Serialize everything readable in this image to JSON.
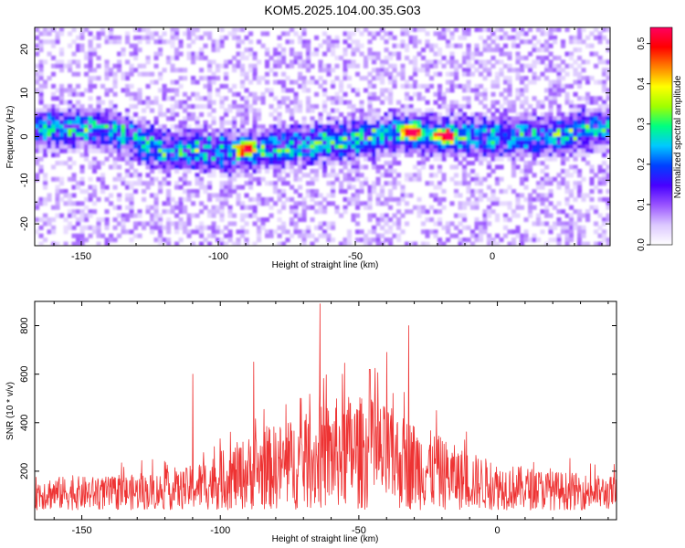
{
  "title": "KOM5.2025.104.00.35.G03",
  "chart_data": [
    {
      "type": "heatmap",
      "xlabel": "Height of straight line (km)",
      "ylabel": "Frequency (Hz)",
      "xlim": [
        -167,
        43
      ],
      "ylim": [
        -25,
        25
      ],
      "x_ticks": [
        -150,
        -100,
        -50,
        0
      ],
      "y_ticks": [
        -20,
        -10,
        0,
        10,
        20
      ],
      "colorbar": {
        "label": "Normalized spectral amplitude",
        "range": [
          0,
          0.54
        ],
        "ticks": [
          0.0,
          0.1,
          0.2,
          0.3,
          0.4,
          0.5
        ],
        "colors": [
          "#ffffff",
          "#dcc8ff",
          "#9a55ff",
          "#4800ff",
          "#0040ff",
          "#00c8ff",
          "#00ff80",
          "#a0ff00",
          "#ffff00",
          "#ff8000",
          "#ff0000",
          "#ff0060"
        ]
      },
      "band_center": [
        {
          "x": -167,
          "y": 2
        },
        {
          "x": -140,
          "y": 1.5
        },
        {
          "x": -120,
          "y": -3
        },
        {
          "x": -90,
          "y": -3.5
        },
        {
          "x": -60,
          "y": -1.5
        },
        {
          "x": -30,
          "y": 1
        },
        {
          "x": -15,
          "y": 0
        },
        {
          "x": 0,
          "y": 0
        },
        {
          "x": 20,
          "y": 0
        },
        {
          "x": 43,
          "y": 2
        }
      ],
      "peaks": [
        {
          "x": -90,
          "y": -3,
          "amp": 0.5
        },
        {
          "x": -29,
          "y": 1,
          "amp": 0.54
        },
        {
          "x": -17,
          "y": 0,
          "amp": 0.5
        }
      ],
      "grid": false
    },
    {
      "type": "line",
      "xlabel": "Height of straight line (km)",
      "ylabel": "SNR (10 * v/v)",
      "xlim": [
        -167,
        43
      ],
      "ylim": [
        0,
        900
      ],
      "x_ticks": [
        -150,
        -100,
        -50,
        0
      ],
      "y_ticks": [
        200,
        400,
        600,
        800
      ],
      "color": "#ee3333",
      "envelope": [
        {
          "x": -167,
          "y": 160
        },
        {
          "x": -140,
          "y": 160
        },
        {
          "x": -115,
          "y": 180
        },
        {
          "x": -100,
          "y": 250
        },
        {
          "x": -85,
          "y": 330
        },
        {
          "x": -70,
          "y": 380
        },
        {
          "x": -55,
          "y": 460
        },
        {
          "x": -45,
          "y": 440
        },
        {
          "x": -30,
          "y": 360
        },
        {
          "x": -15,
          "y": 270
        },
        {
          "x": 0,
          "y": 210
        },
        {
          "x": 20,
          "y": 180
        },
        {
          "x": 43,
          "y": 160
        }
      ],
      "spikes": [
        {
          "x": -110,
          "y": 600
        },
        {
          "x": -88,
          "y": 650
        },
        {
          "x": -64,
          "y": 890
        },
        {
          "x": -56,
          "y": 600
        },
        {
          "x": -46,
          "y": 620
        },
        {
          "x": -40,
          "y": 690
        },
        {
          "x": -32,
          "y": 800
        },
        {
          "x": -22,
          "y": 450
        }
      ],
      "grid": false
    }
  ]
}
